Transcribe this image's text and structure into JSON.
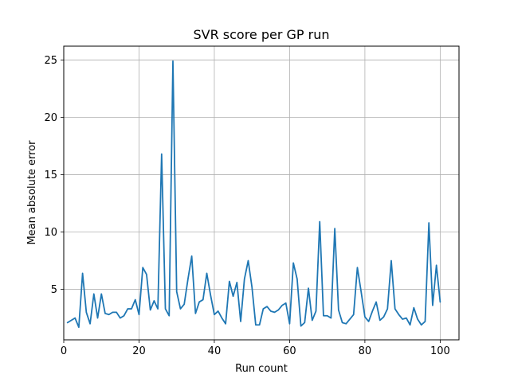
{
  "chart_data": {
    "type": "line",
    "title": "SVR score per GP run",
    "xlabel": "Run count",
    "ylabel": "Mean absolute error",
    "xlim": [
      0,
      105
    ],
    "ylim": [
      0.6,
      26.2
    ],
    "xticks": [
      0,
      20,
      40,
      60,
      80,
      100
    ],
    "yticks": [
      5,
      10,
      15,
      20,
      25
    ],
    "grid": true,
    "legend": "none",
    "series": [
      {
        "color": "#1f77b4",
        "x": [
          1,
          2,
          3,
          4,
          5,
          6,
          7,
          8,
          9,
          10,
          11,
          12,
          13,
          14,
          15,
          16,
          17,
          18,
          19,
          20,
          21,
          22,
          23,
          24,
          25,
          26,
          27,
          28,
          29,
          30,
          31,
          32,
          33,
          34,
          35,
          36,
          37,
          38,
          39,
          40,
          41,
          42,
          43,
          44,
          45,
          46,
          47,
          48,
          49,
          50,
          51,
          52,
          53,
          54,
          55,
          56,
          57,
          58,
          59,
          60,
          61,
          62,
          63,
          64,
          65,
          66,
          67,
          68,
          69,
          70,
          71,
          72,
          73,
          74,
          75,
          76,
          77,
          78,
          79,
          80,
          81,
          82,
          83,
          84,
          85,
          86,
          87,
          88,
          89,
          90,
          91,
          92,
          93,
          94,
          95,
          96,
          97,
          98,
          99,
          100
        ],
        "values": [
          2.1,
          2.3,
          2.5,
          1.7,
          6.4,
          3.0,
          2.0,
          4.6,
          2.5,
          4.6,
          2.9,
          2.8,
          3.0,
          3.0,
          2.5,
          2.7,
          3.3,
          3.3,
          4.1,
          2.8,
          6.9,
          6.3,
          3.2,
          4.0,
          3.3,
          16.8,
          3.3,
          2.7,
          24.9,
          4.8,
          3.3,
          3.7,
          5.9,
          7.9,
          2.9,
          3.9,
          4.1,
          6.4,
          4.5,
          2.8,
          3.1,
          2.5,
          2.0,
          5.7,
          4.4,
          5.6,
          2.2,
          5.9,
          7.5,
          5.2,
          1.9,
          1.9,
          3.3,
          3.5,
          3.1,
          3.0,
          3.2,
          3.6,
          3.8,
          2.0,
          7.3,
          5.9,
          1.8,
          2.1,
          5.1,
          2.3,
          3.1,
          10.9,
          2.7,
          2.7,
          2.5,
          10.3,
          3.2,
          2.1,
          2.0,
          2.4,
          2.8,
          6.9,
          4.8,
          2.6,
          2.2,
          3.1,
          3.9,
          2.3,
          2.6,
          3.3,
          7.5,
          3.3,
          2.8,
          2.4,
          2.5,
          1.9,
          3.4,
          2.4,
          1.9,
          2.2,
          10.8,
          3.6,
          7.1,
          3.9
        ]
      }
    ]
  }
}
